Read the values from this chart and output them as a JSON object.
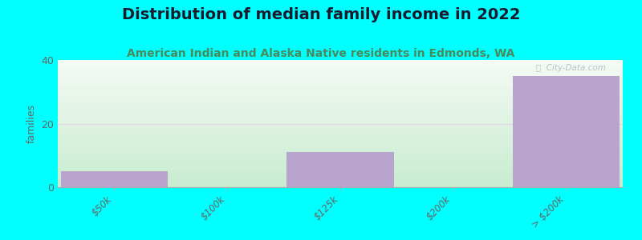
{
  "title": "Distribution of median family income in 2022",
  "subtitle": "American Indian and Alaska Native residents in Edmonds, WA",
  "categories": [
    "$50k",
    "$100k",
    "$125k",
    "$200k",
    "> $200k"
  ],
  "values": [
    5,
    0,
    11,
    0,
    35
  ],
  "bar_color": "#b8a4cc",
  "background_color": "#00ffff",
  "plot_bg_top": "#f5faf5",
  "plot_bg_bottom": "#c8ecd0",
  "ylabel": "families",
  "ylim": [
    0,
    40
  ],
  "yticks": [
    0,
    20,
    40
  ],
  "grid_color": "#e8d0e8",
  "watermark": "ⓘ  City-Data.com",
  "title_fontsize": 14,
  "subtitle_fontsize": 10,
  "subtitle_color": "#4a8a5a",
  "tick_label_color": "#666666",
  "axis_color": "#aaaaaa"
}
